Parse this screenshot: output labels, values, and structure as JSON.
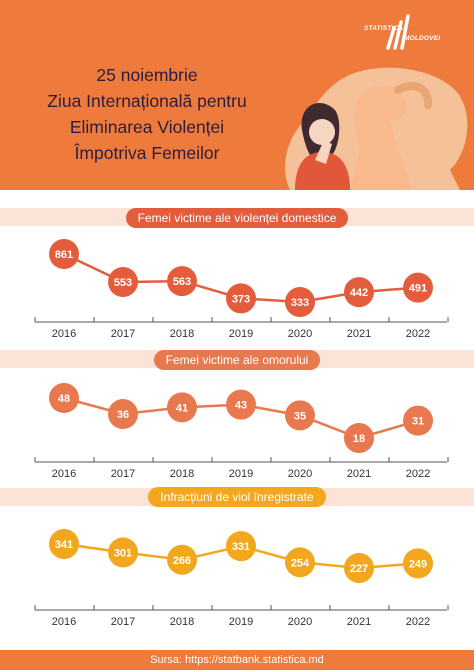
{
  "header": {
    "title_lines": [
      "25 noiembrie",
      "Ziua Internațională pentru",
      "Eliminarea Violenței",
      "Împotriva Femeilor"
    ],
    "logo_top": "STATISTICA",
    "logo_bottom": "MOLDOVEI",
    "bg_color": "#ee7a3c"
  },
  "chart_data": [
    {
      "type": "line",
      "title": "Femei victime ale violenței domestice",
      "categories": [
        "2016",
        "2017",
        "2018",
        "2019",
        "2020",
        "2021",
        "2022"
      ],
      "values": [
        861,
        553,
        563,
        373,
        333,
        442,
        491
      ],
      "color": "#e35d3d"
    },
    {
      "type": "line",
      "title": "Femei victime ale omorului",
      "categories": [
        "2016",
        "2017",
        "2018",
        "2019",
        "2020",
        "2021",
        "2022"
      ],
      "values": [
        48,
        36,
        41,
        43,
        35,
        18,
        31
      ],
      "color": "#e8794f"
    },
    {
      "type": "line",
      "title": "Infracțiuni de viol înregistrate",
      "categories": [
        "2016",
        "2017",
        "2018",
        "2019",
        "2020",
        "2021",
        "2022"
      ],
      "values": [
        341,
        301,
        266,
        331,
        254,
        227,
        249
      ],
      "color": "#f3a71f"
    }
  ],
  "footer": {
    "source": "Sursa: https://statbank.statistica.md"
  }
}
